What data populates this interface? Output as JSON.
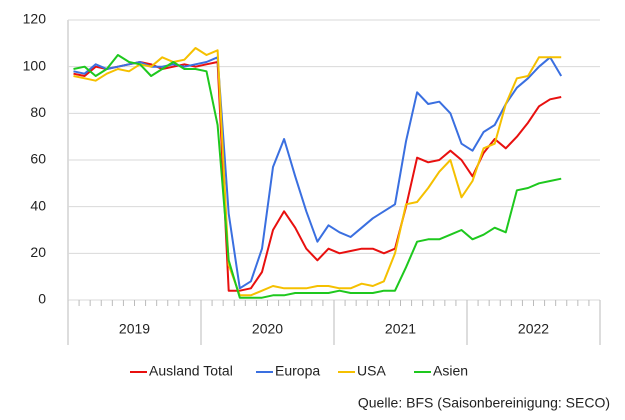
{
  "chart_data": {
    "type": "line",
    "groups": [
      "2019",
      "2020",
      "2021",
      "2022"
    ],
    "series": [
      {
        "name": "Ausland Total",
        "color": "#e8100f",
        "values": [
          97,
          96,
          100,
          99,
          100,
          101,
          102,
          101,
          99,
          100,
          101,
          100,
          101,
          102,
          4,
          4,
          5,
          12,
          30,
          38,
          31,
          22,
          17,
          22,
          20,
          21,
          22,
          22,
          20,
          22,
          40,
          61,
          59,
          60,
          64,
          60,
          53,
          63,
          69,
          65,
          70,
          76,
          83,
          86,
          87
        ]
      },
      {
        "name": "Europa",
        "color": "#3a6fe0",
        "values": [
          98,
          97,
          101,
          99,
          100,
          101,
          102,
          100,
          100,
          101,
          100,
          101,
          102,
          104,
          37,
          5,
          8,
          22,
          57,
          69,
          53,
          38,
          25,
          32,
          29,
          27,
          31,
          35,
          38,
          41,
          68,
          89,
          84,
          85,
          80,
          67,
          64,
          72,
          75,
          84,
          91,
          95,
          100,
          104,
          96
        ]
      },
      {
        "name": "USA",
        "color": "#f5c000",
        "values": [
          96,
          95,
          94,
          97,
          99,
          98,
          101,
          100,
          104,
          102,
          103,
          108,
          105,
          107,
          15,
          2,
          2,
          4,
          6,
          5,
          5,
          5,
          6,
          6,
          5,
          5,
          7,
          6,
          8,
          20,
          41,
          42,
          48,
          55,
          60,
          44,
          51,
          65,
          67,
          84,
          95,
          96,
          104,
          104,
          104
        ]
      },
      {
        "name": "Asien",
        "color": "#1ec81e",
        "values": [
          99,
          100,
          96,
          99,
          105,
          102,
          101,
          96,
          99,
          102,
          99,
          99,
          98,
          75,
          17,
          1,
          1,
          1,
          2,
          2,
          3,
          3,
          3,
          3,
          4,
          3,
          3,
          3,
          4,
          4,
          14,
          25,
          26,
          26,
          28,
          30,
          26,
          28,
          31,
          29,
          47,
          48,
          50,
          51,
          52
        ]
      }
    ],
    "ylim": [
      0,
      120
    ],
    "yticks": [
      0,
      20,
      40,
      60,
      80,
      100,
      120
    ],
    "grid": true,
    "legend": "bottom",
    "source": "Quelle: BFS (Saisonbereinigung: SECO)"
  }
}
